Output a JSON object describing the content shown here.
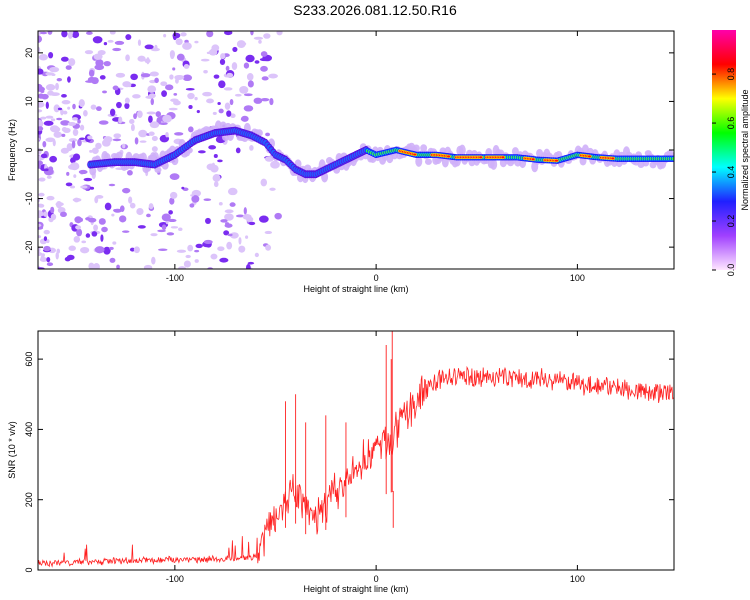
{
  "chart_data": [
    {
      "type": "heatmap",
      "title": "S233.2026.081.12.50.R16",
      "xlabel": "Height of straight line (km)",
      "ylabel": "Frequency (Hz)",
      "xlim": [
        -168,
        148
      ],
      "ylim": [
        -24.5,
        24.5
      ],
      "xticks": [
        -100,
        0,
        100
      ],
      "yticks": [
        -20,
        -10,
        0,
        10,
        20
      ],
      "colorbar": {
        "label": "Normalized spectral amplitude",
        "range": [
          0.0,
          0.98
        ],
        "ticks": [
          "0.0",
          "0.2",
          "0.4",
          "0.6",
          "0.8"
        ],
        "colors": [
          "#ffe6ff",
          "#a040ff",
          "#2020ff",
          "#00ffff",
          "#00ff00",
          "#ffff00",
          "#ff0000",
          "#ff00aa"
        ]
      },
      "ridge": {
        "x": [
          -142,
          -130,
          -120,
          -110,
          -100,
          -90,
          -80,
          -70,
          -62,
          -55,
          -50,
          -45,
          -40,
          -35,
          -30,
          -25,
          -20,
          -15,
          -10,
          -5,
          0,
          5,
          10,
          20,
          30,
          40,
          50,
          60,
          70,
          80,
          90,
          100,
          110,
          120,
          130,
          148
        ],
        "y": [
          -3,
          -2.5,
          -2.5,
          -3,
          -1,
          2,
          3.5,
          4,
          3,
          1.5,
          -1,
          -2,
          -4,
          -5,
          -5,
          -4,
          -3,
          -2,
          -1,
          0,
          -1,
          -0.5,
          0,
          -1,
          -1,
          -1.5,
          -1.5,
          -1.5,
          -1.5,
          -2,
          -2.2,
          -1,
          -1.5,
          -1.8,
          -1.8,
          -1.8
        ]
      },
      "colors": {
        "ridge": "#ff0000"
      }
    },
    {
      "type": "line",
      "title": "",
      "xlabel": "Height of straight line (km)",
      "ylabel": "SNR (10 * v/v)",
      "xlim": [
        -168,
        148
      ],
      "ylim": [
        0,
        680
      ],
      "xticks": [
        -100,
        0,
        100
      ],
      "yticks": [
        0,
        200,
        400,
        600
      ],
      "series": [
        {
          "name": "SNR",
          "color": "#ff2020",
          "x": [
            -168,
            -150,
            -130,
            -110,
            -100,
            -90,
            -80,
            -70,
            -62,
            -58,
            -55,
            -50,
            -45,
            -40,
            -35,
            -30,
            -25,
            -20,
            -15,
            -10,
            -5,
            0,
            5,
            8,
            10,
            15,
            20,
            25,
            30,
            40,
            50,
            60,
            70,
            80,
            90,
            100,
            110,
            120,
            130,
            148
          ],
          "y": [
            20,
            22,
            25,
            28,
            30,
            30,
            32,
            30,
            35,
            60,
            110,
            160,
            200,
            220,
            170,
            140,
            190,
            220,
            250,
            280,
            320,
            350,
            360,
            370,
            390,
            440,
            480,
            520,
            540,
            550,
            550,
            550,
            545,
            545,
            540,
            530,
            525,
            520,
            510,
            500
          ]
        }
      ],
      "spikes": {
        "x": [
          -45,
          -40,
          -35,
          -25,
          -15,
          5,
          7.5,
          8,
          8.5
        ],
        "y": [
          480,
          500,
          420,
          440,
          420,
          640,
          600,
          680,
          120
        ]
      }
    }
  ]
}
